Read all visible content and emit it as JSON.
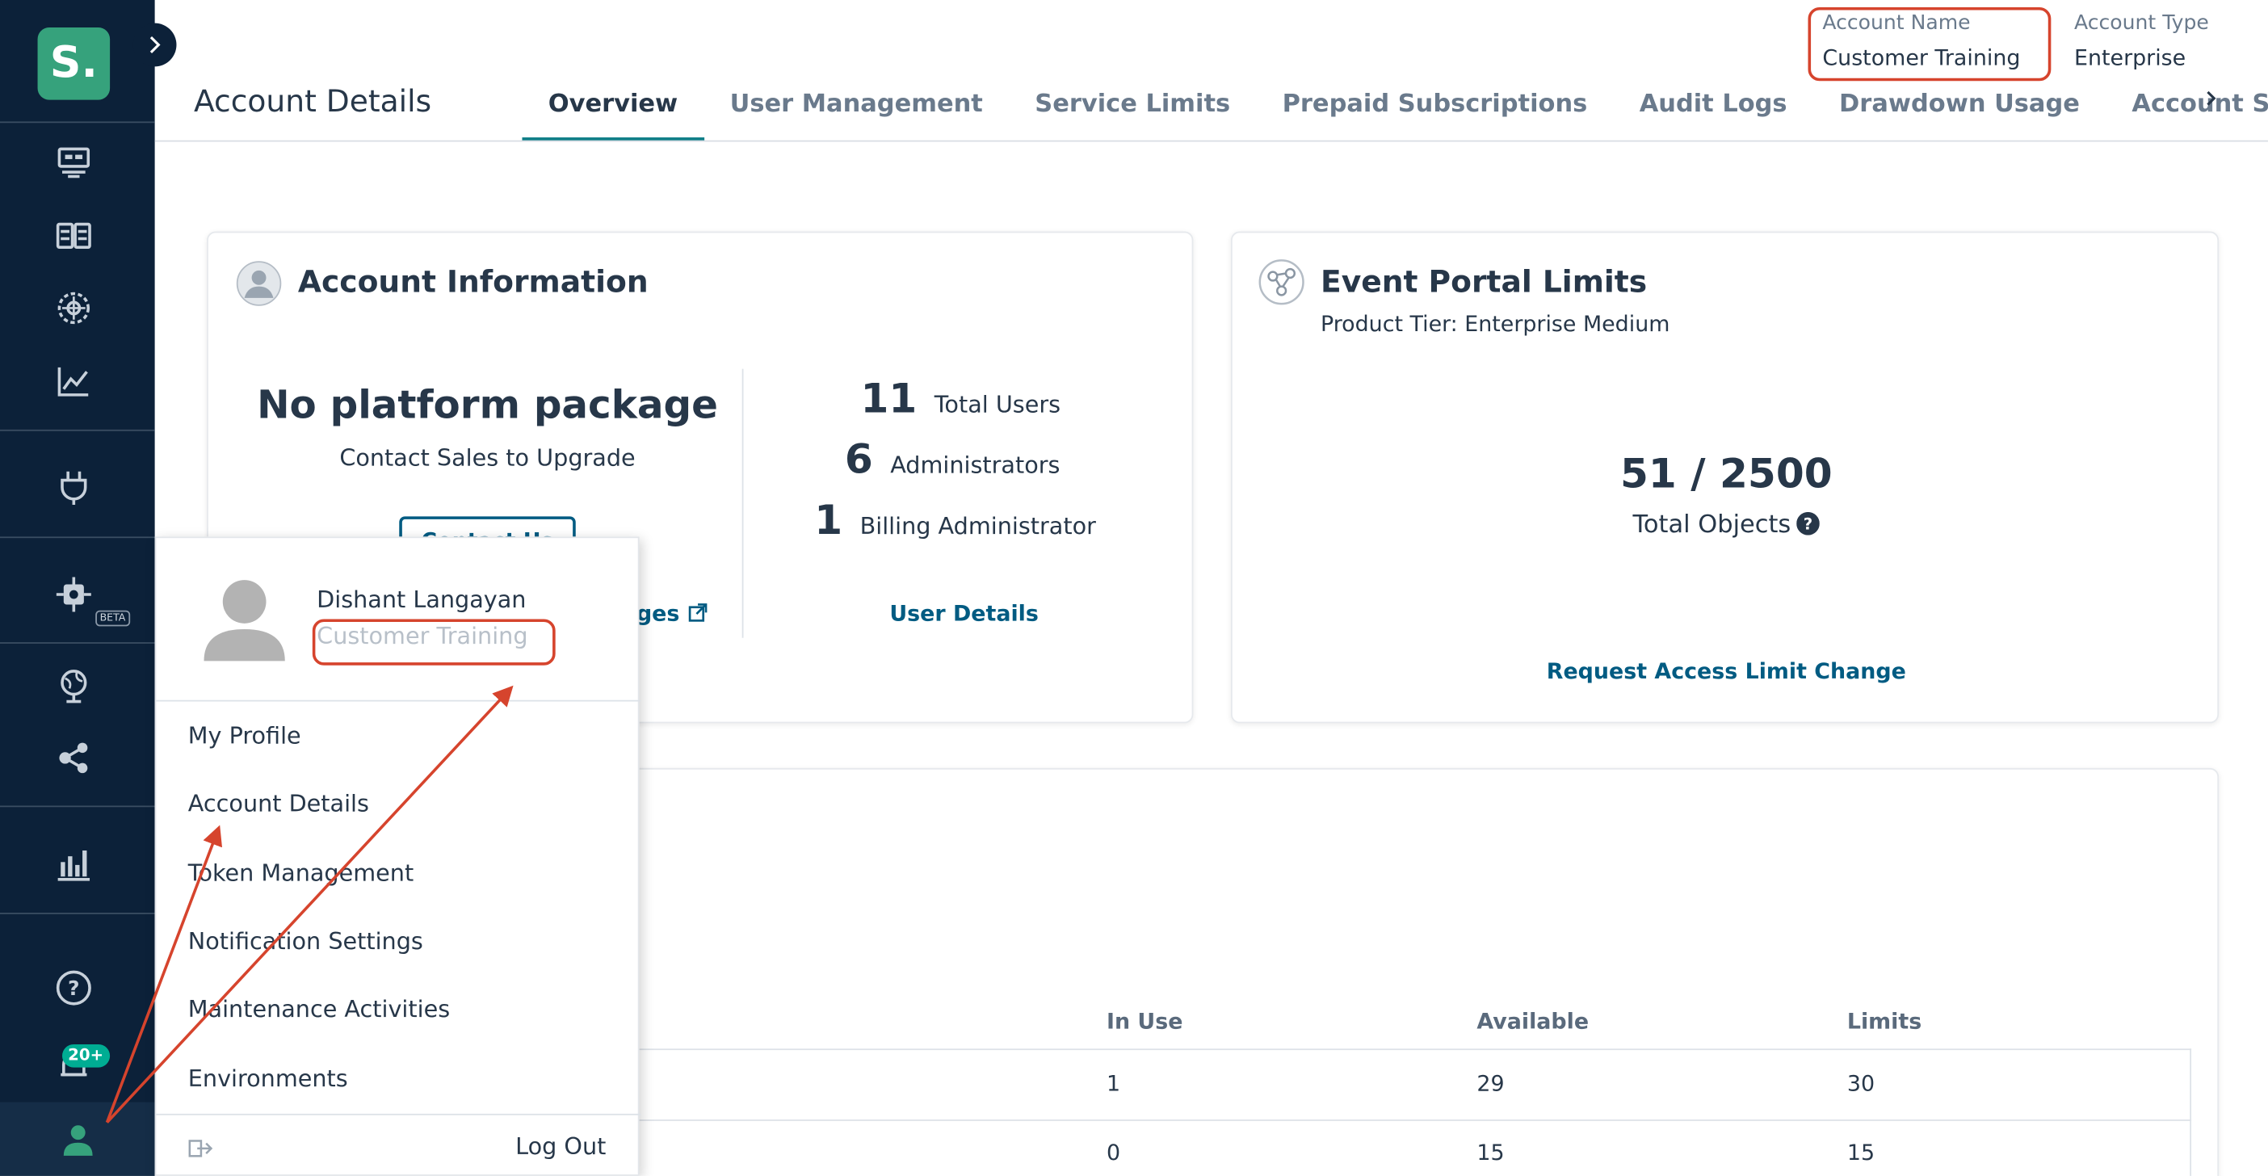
{
  "sidebar": {
    "logo_text": "S.",
    "beta_label": "BETA",
    "notification_badge": "20+",
    "icons": [
      "broker-icon",
      "catalog-icon",
      "mesh-icon",
      "insights-icon",
      "plug-icon",
      "gear-chip-icon",
      "globe-pin-icon",
      "share-icon",
      "bar-chart-icon",
      "help-icon",
      "bell-icon",
      "user-icon"
    ]
  },
  "header": {
    "page_title": "Account Details",
    "tabs": [
      "Overview",
      "User Management",
      "Service Limits",
      "Prepaid Subscriptions",
      "Audit Logs",
      "Drawdown Usage",
      "Account Settin"
    ],
    "active_tab": "Overview",
    "account_name_label": "Account Name",
    "account_name_value": "Customer Training",
    "account_type_label": "Account Type",
    "account_type_value": "Enterprise"
  },
  "account_info": {
    "title": "Account Information",
    "package_title": "No platform package",
    "package_sub": "Contact Sales to Upgrade",
    "contact_button": "Contact Us",
    "packages_link": "ges",
    "stats": [
      {
        "num": "11",
        "label": "Total Users"
      },
      {
        "num": "6",
        "label": "Administrators"
      },
      {
        "num": "1",
        "label": "Billing Administrator"
      }
    ],
    "user_details_link": "User Details"
  },
  "event_portal": {
    "title": "Event Portal Limits",
    "product_tier": "Product Tier: Enterprise Medium",
    "usage": "51 / 2500",
    "usage_label": "Total Objects",
    "request_link": "Request Access Limit Change"
  },
  "limits_table": {
    "headers": [
      "In Use",
      "Available",
      "Limits"
    ],
    "rows": [
      [
        "1",
        "29",
        "30"
      ],
      [
        "0",
        "15",
        "15"
      ]
    ]
  },
  "profile_menu": {
    "user_name": "Dishant Langayan",
    "account_name": "Customer Training",
    "items": [
      "My Profile",
      "Account Details",
      "Token Management",
      "Notification Settings",
      "Maintenance Activities",
      "Environments"
    ],
    "logout": "Log Out"
  },
  "colors": {
    "sidebar": "#0c2139",
    "accent": "#0c7d86",
    "link": "#015b82",
    "annotation": "#d6442d",
    "logo": "#36a27c"
  }
}
